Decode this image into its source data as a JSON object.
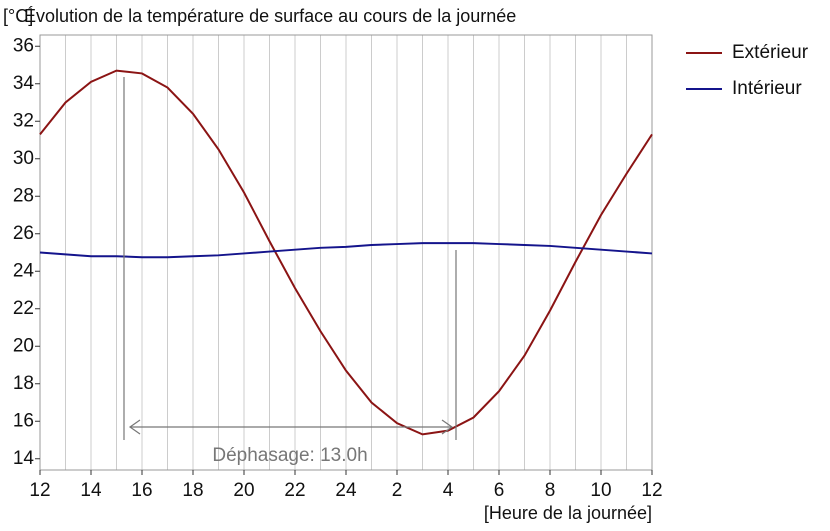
{
  "chart_data": {
    "type": "line",
    "title": "Évolution de la température de surface au cours de la journée",
    "ylabel": "[°C]",
    "xlabel": "[Heure de la journée]",
    "annotation": "Déphasage: 13.0h",
    "x": [
      0,
      1,
      2,
      3,
      4,
      5,
      6,
      7,
      8,
      9,
      10,
      11,
      12,
      13,
      14,
      15,
      16,
      17,
      18,
      19,
      20,
      21,
      22,
      23,
      24
    ],
    "series": [
      {
        "name": "Extérieur",
        "color": "#8b1414",
        "values": [
          31.3,
          33.0,
          34.1,
          34.7,
          34.55,
          33.8,
          32.4,
          30.5,
          28.2,
          25.6,
          23.1,
          20.8,
          18.7,
          17.0,
          15.9,
          15.3,
          15.5,
          16.2,
          17.6,
          19.5,
          21.9,
          24.5,
          27.0,
          29.2,
          31.3
        ]
      },
      {
        "name": "Intérieur",
        "color": "#14148c",
        "values": [
          25.0,
          24.9,
          24.8,
          24.8,
          24.75,
          24.75,
          24.8,
          24.85,
          24.95,
          25.05,
          25.15,
          25.25,
          25.3,
          25.4,
          25.45,
          25.5,
          25.5,
          25.5,
          25.45,
          25.4,
          25.35,
          25.25,
          25.15,
          25.05,
          24.95
        ]
      }
    ],
    "xlim": [
      0,
      24
    ],
    "xticks": [
      {
        "value": 0,
        "label": "12"
      },
      {
        "value": 2,
        "label": "14"
      },
      {
        "value": 4,
        "label": "16"
      },
      {
        "value": 6,
        "label": "18"
      },
      {
        "value": 8,
        "label": "20"
      },
      {
        "value": 10,
        "label": "22"
      },
      {
        "value": 12,
        "label": "24"
      },
      {
        "value": 14,
        "label": "2"
      },
      {
        "value": 16,
        "label": "4"
      },
      {
        "value": 18,
        "label": "6"
      },
      {
        "value": 20,
        "label": "8"
      },
      {
        "value": 22,
        "label": "10"
      },
      {
        "value": 24,
        "label": "12"
      }
    ],
    "ylim": [
      13.4,
      36.6
    ],
    "yticks": [
      14,
      16,
      18,
      20,
      22,
      24,
      26,
      28,
      30,
      32,
      34,
      36
    ],
    "grid": true,
    "legend": "right"
  }
}
